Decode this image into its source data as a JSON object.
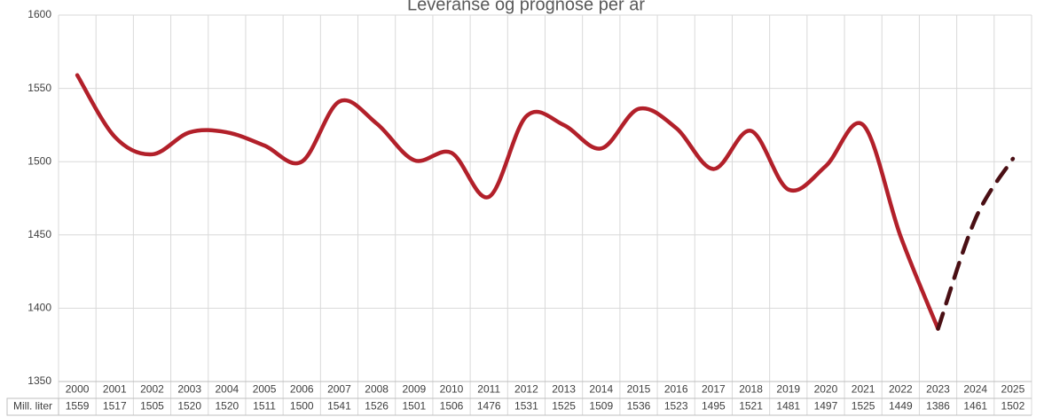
{
  "chart_data": {
    "type": "line",
    "title": "Leveranse og prognose per år",
    "categories": [
      "2000",
      "2001",
      "2002",
      "2003",
      "2004",
      "2005",
      "2006",
      "2007",
      "2008",
      "2009",
      "2010",
      "2011",
      "2012",
      "2013",
      "2014",
      "2015",
      "2016",
      "2017",
      "2018",
      "2019",
      "2020",
      "2021",
      "2022",
      "2023",
      "2024",
      "2025"
    ],
    "series": [
      {
        "name": "Mill. liter",
        "color": "#b2202a",
        "forecast_color": "#4a0f14",
        "values": [
          1559,
          1517,
          1505,
          1520,
          1520,
          1511,
          1500,
          1541,
          1526,
          1501,
          1506,
          1476,
          1531,
          1525,
          1509,
          1536,
          1523,
          1495,
          1521,
          1481,
          1497,
          1525,
          1449,
          1386,
          1461,
          1502
        ]
      }
    ],
    "dashed_from_category": "2023",
    "ylim": [
      1350,
      1600
    ],
    "yticks": [
      1350,
      1400,
      1450,
      1500,
      1550,
      1600
    ],
    "grid": true
  }
}
